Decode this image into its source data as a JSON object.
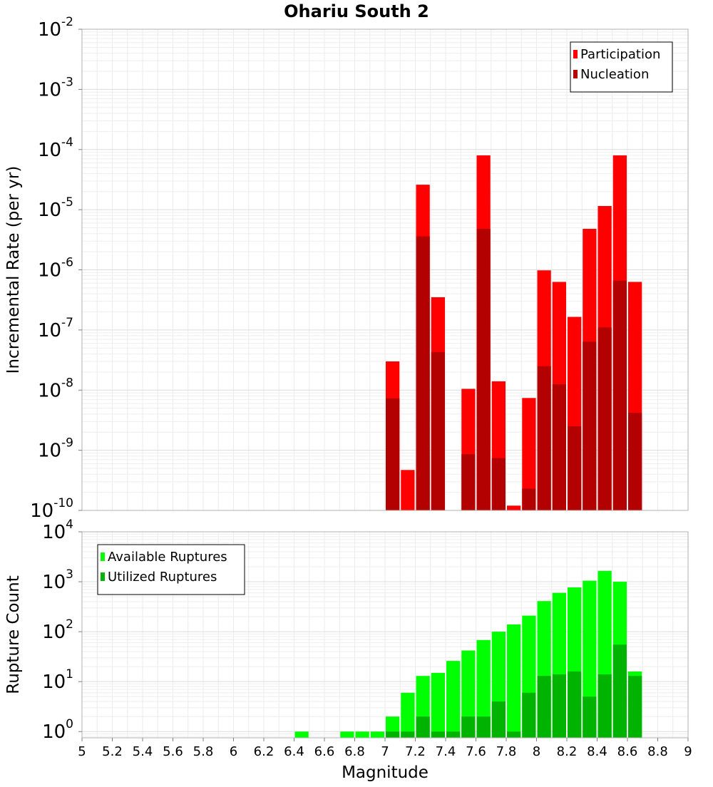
{
  "chart_data": [
    {
      "type": "bar",
      "title": "Ohariu South 2",
      "xlabel": "",
      "ylabel": "Incremental Rate (per yr)",
      "yscale": "log",
      "ylim": [
        1e-10,
        0.01
      ],
      "xlim": [
        5,
        9
      ],
      "grid": true,
      "legend_position": "top-right",
      "y_ticks": [
        {
          "base": "10",
          "exp": "-10"
        },
        {
          "base": "10",
          "exp": "-9"
        },
        {
          "base": "10",
          "exp": "-8"
        },
        {
          "base": "10",
          "exp": "-7"
        },
        {
          "base": "10",
          "exp": "-6"
        },
        {
          "base": "10",
          "exp": "-5"
        },
        {
          "base": "10",
          "exp": "-4"
        },
        {
          "base": "10",
          "exp": "-3"
        },
        {
          "base": "10",
          "exp": "-2"
        }
      ],
      "x": [
        7.05,
        7.15,
        7.25,
        7.35,
        7.45,
        7.55,
        7.65,
        7.75,
        7.85,
        7.95,
        8.05,
        8.15,
        8.25,
        8.35,
        8.45,
        8.55,
        8.65
      ],
      "series": [
        {
          "name": "Participation",
          "color": "#ff0000",
          "values": [
            3e-08,
            4.7e-10,
            2.6e-05,
            3.5e-07,
            null,
            1.05e-08,
            8e-05,
            1.4e-08,
            1.2e-10,
            7.4e-09,
            9.8e-07,
            6.3e-07,
            1.65e-07,
            4.8e-06,
            1.15e-05,
            8e-05,
            6.3e-07
          ]
        },
        {
          "name": "Nucleation",
          "color": "#b30000",
          "values": [
            7.3e-09,
            null,
            3.6e-06,
            4.3e-08,
            null,
            8.6e-10,
            4.8e-06,
            7.4e-10,
            null,
            2.3e-10,
            2.5e-08,
            1.25e-08,
            2.5e-09,
            6.4e-08,
            1.1e-07,
            6.6e-07,
            4.2e-09
          ]
        }
      ]
    },
    {
      "type": "bar",
      "title": "",
      "xlabel": "Magnitude",
      "ylabel": "Rupture Count",
      "yscale": "log",
      "ylim": [
        0.75,
        10000
      ],
      "xlim": [
        5,
        9
      ],
      "grid": true,
      "legend_position": "top-left",
      "y_ticks": [
        {
          "base": "10",
          "exp": "0"
        },
        {
          "base": "10",
          "exp": "1"
        },
        {
          "base": "10",
          "exp": "2"
        },
        {
          "base": "10",
          "exp": "3"
        },
        {
          "base": "10",
          "exp": "4"
        }
      ],
      "x_ticks": [
        "5",
        "5.2",
        "5.4",
        "5.6",
        "5.8",
        "6",
        "6.2",
        "6.4",
        "6.6",
        "6.8",
        "7",
        "7.2",
        "7.4",
        "7.6",
        "7.8",
        "8",
        "8.2",
        "8.4",
        "8.6",
        "8.8",
        "9"
      ],
      "x": [
        6.45,
        6.75,
        6.85,
        6.95,
        7.05,
        7.15,
        7.25,
        7.35,
        7.45,
        7.55,
        7.65,
        7.75,
        7.85,
        7.95,
        8.05,
        8.15,
        8.25,
        8.35,
        8.45,
        8.55,
        8.65
      ],
      "series": [
        {
          "name": "Available Ruptures",
          "color": "#00ff00",
          "values": [
            1,
            1,
            1,
            1,
            2,
            6,
            13,
            15,
            26,
            42,
            68,
            100,
            140,
            210,
            410,
            600,
            770,
            1050,
            1650,
            1000,
            16
          ]
        },
        {
          "name": "Utilized Ruptures",
          "color": "#00b300",
          "values": [
            null,
            null,
            null,
            null,
            1,
            1,
            2,
            1,
            1,
            2,
            2,
            4,
            1,
            6,
            13,
            14,
            16,
            5,
            14,
            55,
            13
          ]
        }
      ]
    }
  ]
}
